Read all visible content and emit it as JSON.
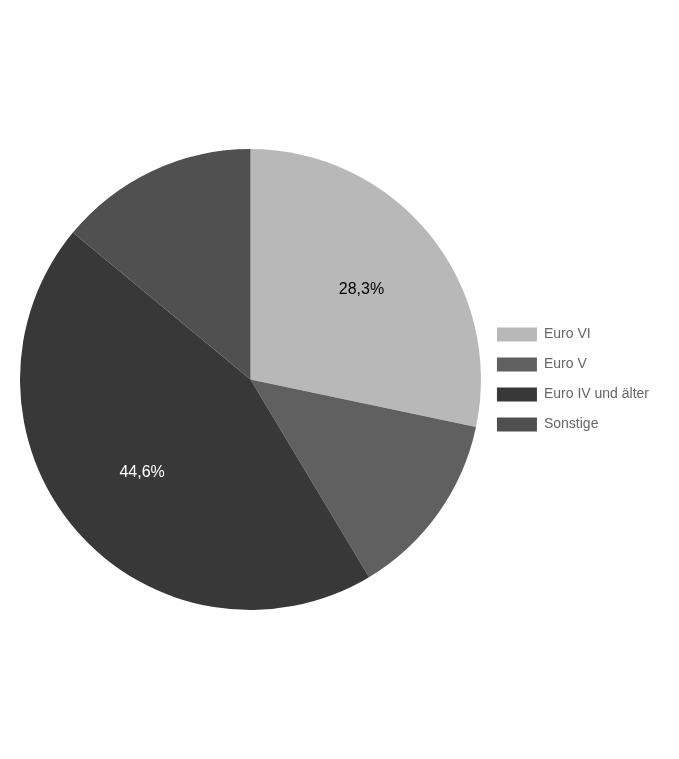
{
  "chart_data": {
    "type": "pie",
    "categories": [
      "Euro VI",
      "Euro V",
      "Euro IV und älter",
      "Sonstige"
    ],
    "values": [
      28.3,
      13.1,
      44.6,
      14.0
    ],
    "colors": [
      "#b8b8b8",
      "#606060",
      "#383838",
      "#505050"
    ],
    "data_labels": true,
    "value_labels": [
      "28,3%",
      null,
      "44,6%",
      null
    ],
    "legend": "right"
  }
}
